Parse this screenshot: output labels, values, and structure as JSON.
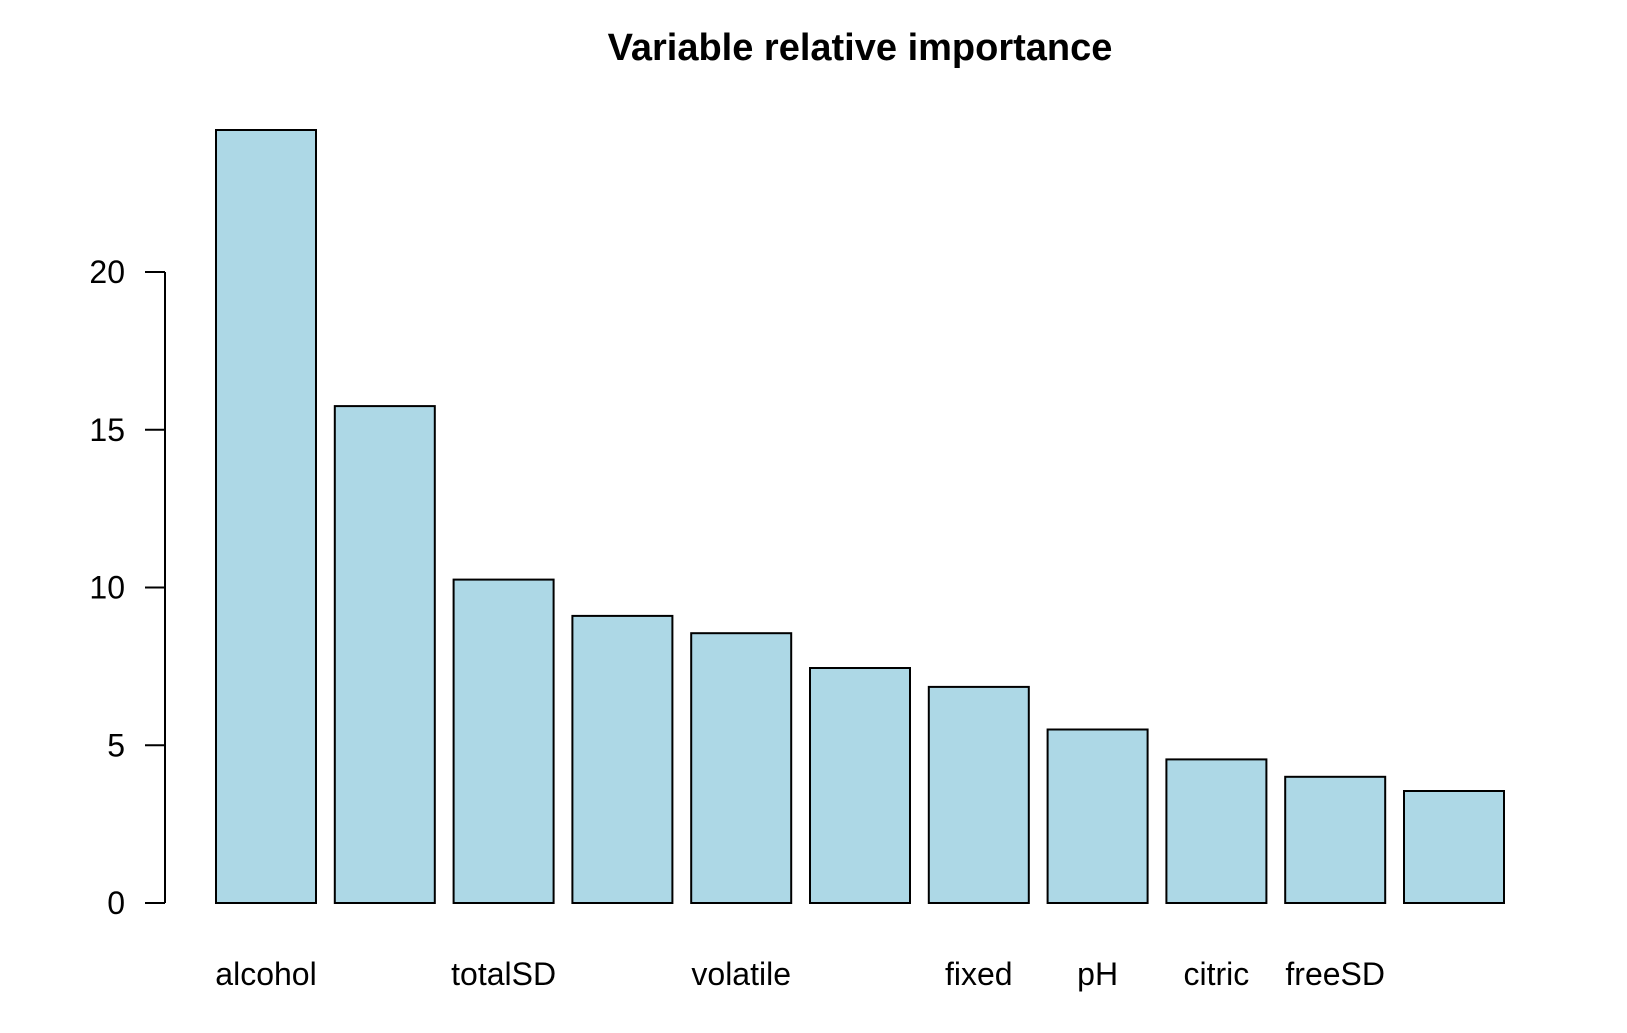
{
  "chart_data": {
    "type": "bar",
    "title": "Variable relative importance",
    "xlabel": "",
    "ylabel": "",
    "ylim": [
      0,
      24.5
    ],
    "yticks": [
      0,
      5,
      10,
      15,
      20
    ],
    "bar_color": "#add8e6",
    "grid": false,
    "legend": "none",
    "categories": [
      "alcohol",
      "",
      "totalSD",
      "",
      "volatile",
      "",
      "fixed",
      "pH",
      "citric",
      "freeSD",
      ""
    ],
    "values": [
      24.5,
      15.75,
      10.25,
      9.1,
      8.55,
      7.45,
      6.85,
      5.5,
      4.55,
      4.0,
      3.55
    ]
  }
}
